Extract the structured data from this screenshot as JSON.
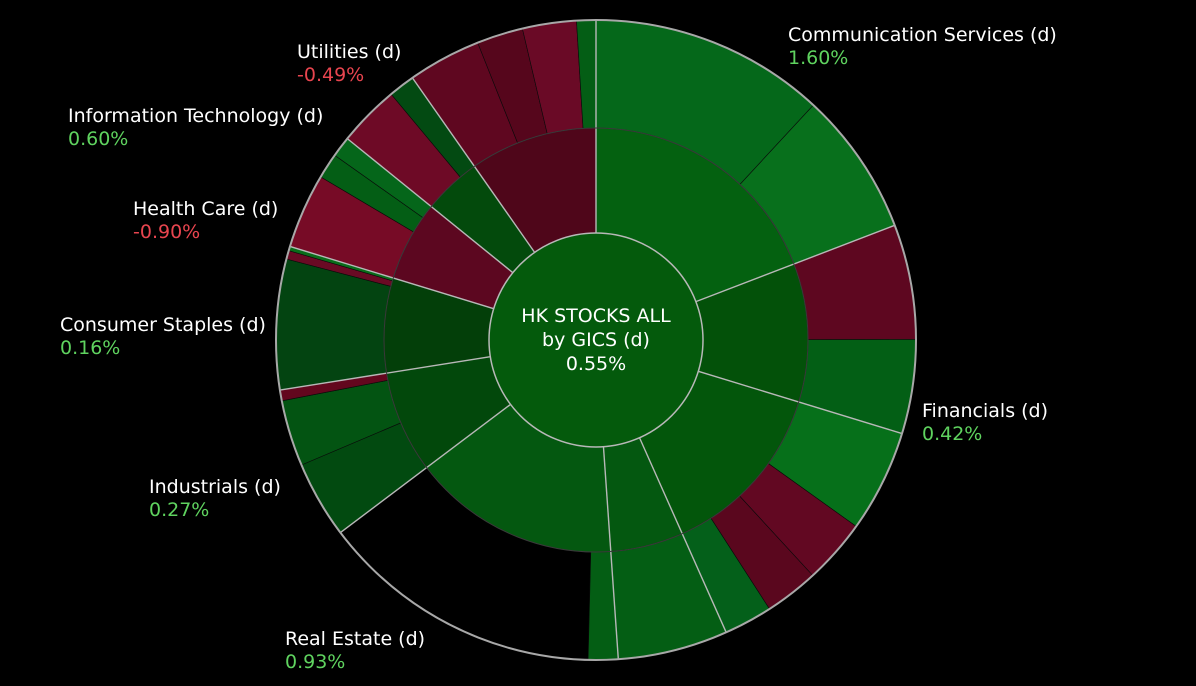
{
  "chart_data": {
    "type": "sunburst",
    "center": {
      "title_line1": "HK STOCKS ALL",
      "title_line2": "by GICS (d)",
      "value": "0.55%",
      "color": "#045a0c"
    },
    "sectors": [
      {
        "name": "Communication Services (d)",
        "value": "1.60%",
        "sign": "pos",
        "color": "#046110",
        "industries": [
          {
            "color": "#046110",
            "stocks": [
              "#05681a",
              "#08701c"
            ]
          }
        ]
      },
      {
        "name": "Financials (d)",
        "value": "0.42%",
        "sign": "pos",
        "color": "#035109",
        "industries": [
          {
            "color": "#035109",
            "stocks": [
              "#5e0720",
              "#035f15",
              "#024010"
            ]
          }
        ]
      },
      {
        "name": "Financials (d)",
        "value": "",
        "sign": "pos",
        "color": "#03560b",
        "industries": [
          {
            "color": "#03560b",
            "stocks": [
              "#06701a",
              "#620822",
              "#5a071e",
              "#04601a"
            ]
          }
        ]
      },
      {
        "name": "Real Estate (d)",
        "value": "0.93%",
        "sign": "pos",
        "color": "#045810",
        "industries": [
          {
            "color": "#045810",
            "stocks": [
              "#045e14"
            ]
          }
        ]
      },
      {
        "name": "Industrials (d)",
        "value": "0.27%",
        "sign": "pos",
        "color": "#02480b",
        "industries": [
          {
            "color": "#02480b",
            "stocks": [
              "#024a10",
              "#035412",
              "#63071e"
            ]
          }
        ]
      },
      {
        "name": "Consumer Staples (d)",
        "value": "0.16%",
        "sign": "pos",
        "color": "#033f09",
        "industries": [
          {
            "color": "#033f09",
            "stocks": [
              "#034411",
              "#6a0a24",
              "#0a6d1a"
            ]
          }
        ]
      },
      {
        "name": "Health Care (d)",
        "value": "-0.90%",
        "sign": "neg",
        "color": "#5c0720",
        "industries": [
          {
            "color": "#5c0720",
            "stocks": [
              "#770b26",
              "#045e15",
              "#05661a"
            ]
          }
        ]
      },
      {
        "name": "Information Technology (d)",
        "value": "0.60%",
        "sign": "pos",
        "color": "#034a0c",
        "industries": [
          {
            "color": "#034a0c",
            "stocks": [
              "#6e0a26",
              "#034a12"
            ]
          }
        ]
      },
      {
        "name": "Utilities (d)",
        "value": "-0.49%",
        "sign": "neg",
        "color": "#4f061a",
        "industries": [
          {
            "color": "#4f061a",
            "stocks": [
              "#5f0720",
              "#56061c",
              "#6a0a26",
              "#045e15"
            ]
          }
        ]
      }
    ],
    "labels": [
      {
        "name": "Communication Services (d)",
        "value": "1.60%",
        "sign": "pos"
      },
      {
        "name": "Financials (d)",
        "value": "0.42%",
        "sign": "pos"
      },
      {
        "name": "Real Estate (d)",
        "value": "0.93%",
        "sign": "pos"
      },
      {
        "name": "Industrials (d)",
        "value": "0.27%",
        "sign": "pos"
      },
      {
        "name": "Consumer Staples (d)",
        "value": "0.16%",
        "sign": "pos"
      },
      {
        "name": "Health Care (d)",
        "value": "-0.90%",
        "sign": "neg"
      },
      {
        "name": "Information Technology (d)",
        "value": "0.60%",
        "sign": "pos"
      },
      {
        "name": "Utilities (d)",
        "value": "-0.49%",
        "sign": "neg"
      }
    ],
    "colors": {
      "positive_text": "#5fd35f",
      "negative_text": "#e8454f",
      "background": "#000000",
      "separator": "#b8b8b8"
    }
  }
}
